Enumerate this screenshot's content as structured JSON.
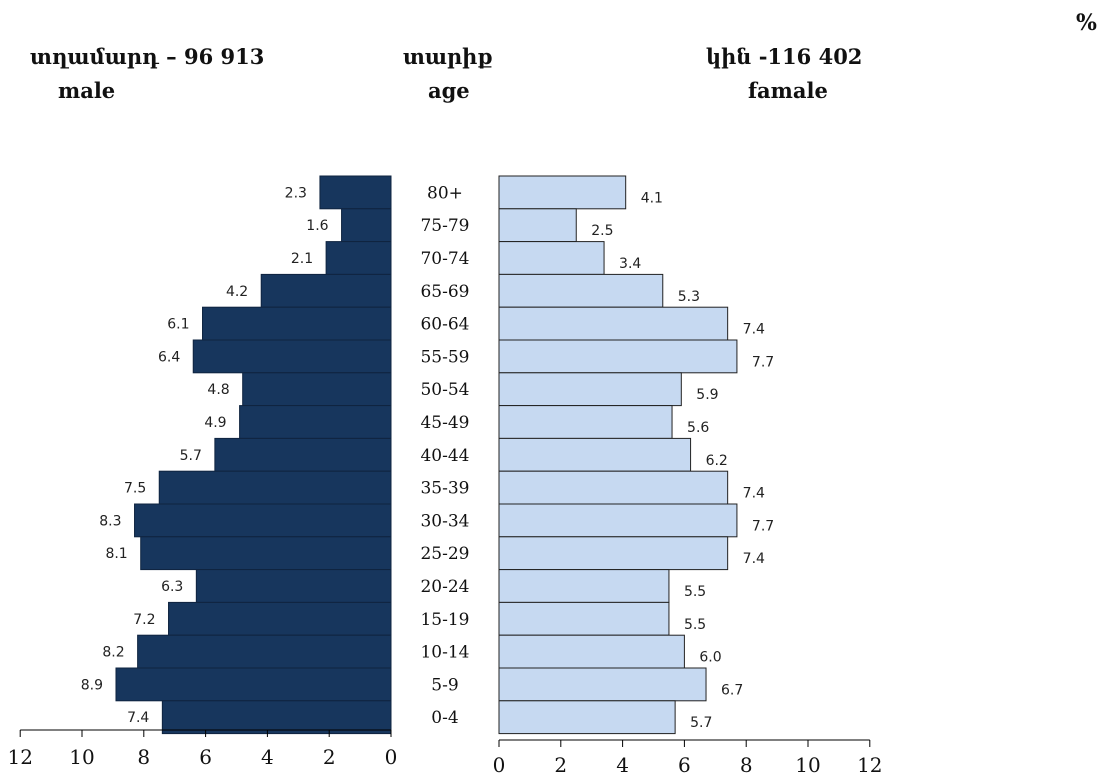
{
  "header": {
    "unit": "%",
    "male_title": "տղամարդ – 96 913",
    "male_sub": "male",
    "age_title": "տարիք",
    "age_sub": "age",
    "female_title": "կին -116 402",
    "female_sub": "famale"
  },
  "chart_data": {
    "type": "bar",
    "orientation": "horizontal",
    "categories": [
      "80+",
      "75-79",
      "70-74",
      "65-69",
      "60-64",
      "55-59",
      "50-54",
      "45-49",
      "40-44",
      "35-39",
      "30-34",
      "25-29",
      "20-24",
      "15-19",
      "10-14",
      "5-9",
      "0-4"
    ],
    "series": [
      {
        "name": "male",
        "values": [
          2.3,
          1.6,
          2.1,
          4.2,
          6.1,
          6.4,
          4.8,
          4.9,
          5.7,
          7.5,
          8.3,
          8.1,
          6.3,
          7.2,
          8.2,
          8.9,
          7.4
        ],
        "labels": [
          "2.3",
          "1.6",
          "2.1",
          "4.2",
          "6.1",
          "6.4",
          "4.8",
          "4.9",
          "5.7",
          "7.5",
          "8.3",
          "8.1",
          "6.3",
          "7.2",
          "8.2",
          "8.9",
          "7.4"
        ]
      },
      {
        "name": "famale",
        "values": [
          4.1,
          2.5,
          3.4,
          5.3,
          7.4,
          7.7,
          5.9,
          5.6,
          6.2,
          7.4,
          7.7,
          7.4,
          5.5,
          5.5,
          6.0,
          6.7,
          5.7
        ],
        "labels": [
          "4.1",
          "2.5",
          "3.4",
          "5.3",
          "7.4",
          "7.7",
          "5.9",
          "5.6",
          "6.2",
          "7.4",
          "7.7",
          "7.4",
          "5.5",
          "5.5",
          "6.0",
          "6.7",
          "5.7"
        ]
      }
    ],
    "xlim": [
      0,
      12
    ],
    "xticks": [
      "0",
      "2",
      "4",
      "6",
      "8",
      "10",
      "12"
    ],
    "grid": false,
    "colors": {
      "male": "#17365d",
      "female": "#c6d9f1",
      "female_stroke": "#222222"
    }
  }
}
